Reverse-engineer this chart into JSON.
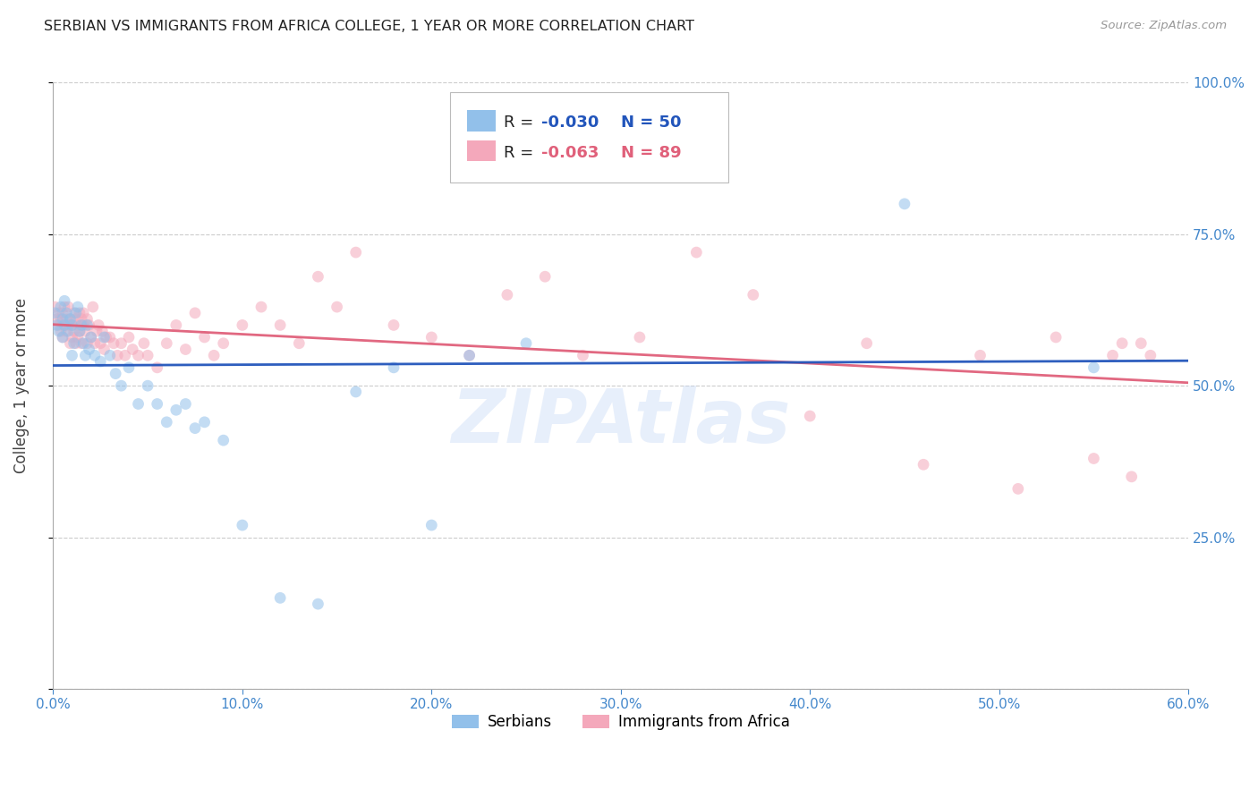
{
  "title": "SERBIAN VS IMMIGRANTS FROM AFRICA COLLEGE, 1 YEAR OR MORE CORRELATION CHART",
  "source": "Source: ZipAtlas.com",
  "ylabel": "College, 1 year or more",
  "x_ticks": [
    0.0,
    0.1,
    0.2,
    0.3,
    0.4,
    0.5,
    0.6
  ],
  "x_tick_labels": [
    "0.0%",
    "10.0%",
    "20.0%",
    "30.0%",
    "40.0%",
    "50.0%",
    "60.0%"
  ],
  "y_ticks": [
    0.0,
    0.25,
    0.5,
    0.75,
    1.0
  ],
  "right_y_tick_labels": [
    "",
    "25.0%",
    "50.0%",
    "75.0%",
    "100.0%"
  ],
  "xlim": [
    0.0,
    0.6
  ],
  "ylim": [
    0.0,
    1.0
  ],
  "legend_serbian_R": "-0.030",
  "legend_serbian_N": "50",
  "legend_africa_R": "-0.063",
  "legend_africa_N": "89",
  "serbian_color": "#92C0EA",
  "africa_color": "#F4A8BB",
  "trendline_serbian_color": "#2255BB",
  "trendline_africa_color": "#E0607A",
  "grid_color": "#CCCCCC",
  "axis_label_color": "#4488CC",
  "title_color": "#222222",
  "background_color": "#FFFFFF",
  "serbian_x": [
    0.001,
    0.002,
    0.003,
    0.004,
    0.005,
    0.005,
    0.006,
    0.006,
    0.007,
    0.008,
    0.009,
    0.01,
    0.01,
    0.011,
    0.012,
    0.013,
    0.014,
    0.015,
    0.016,
    0.017,
    0.018,
    0.019,
    0.02,
    0.022,
    0.025,
    0.027,
    0.03,
    0.033,
    0.036,
    0.04,
    0.045,
    0.05,
    0.055,
    0.06,
    0.065,
    0.07,
    0.075,
    0.08,
    0.09,
    0.1,
    0.12,
    0.14,
    0.16,
    0.18,
    0.2,
    0.22,
    0.25,
    0.33,
    0.45,
    0.55
  ],
  "serbian_y": [
    0.62,
    0.6,
    0.59,
    0.63,
    0.61,
    0.58,
    0.64,
    0.6,
    0.62,
    0.59,
    0.61,
    0.6,
    0.55,
    0.57,
    0.62,
    0.63,
    0.59,
    0.6,
    0.57,
    0.55,
    0.6,
    0.56,
    0.58,
    0.55,
    0.54,
    0.58,
    0.55,
    0.52,
    0.5,
    0.53,
    0.47,
    0.5,
    0.47,
    0.44,
    0.46,
    0.47,
    0.43,
    0.44,
    0.41,
    0.27,
    0.15,
    0.14,
    0.49,
    0.53,
    0.27,
    0.55,
    0.57,
    0.85,
    0.8,
    0.53
  ],
  "africa_x": [
    0.001,
    0.002,
    0.003,
    0.003,
    0.004,
    0.004,
    0.005,
    0.005,
    0.006,
    0.006,
    0.007,
    0.007,
    0.008,
    0.008,
    0.009,
    0.009,
    0.01,
    0.01,
    0.011,
    0.011,
    0.012,
    0.012,
    0.013,
    0.013,
    0.014,
    0.014,
    0.015,
    0.015,
    0.016,
    0.016,
    0.017,
    0.018,
    0.018,
    0.019,
    0.02,
    0.021,
    0.022,
    0.023,
    0.024,
    0.025,
    0.026,
    0.027,
    0.028,
    0.03,
    0.032,
    0.034,
    0.036,
    0.038,
    0.04,
    0.042,
    0.045,
    0.048,
    0.05,
    0.055,
    0.06,
    0.065,
    0.07,
    0.075,
    0.08,
    0.085,
    0.09,
    0.1,
    0.11,
    0.12,
    0.13,
    0.14,
    0.15,
    0.16,
    0.18,
    0.2,
    0.22,
    0.24,
    0.26,
    0.28,
    0.31,
    0.34,
    0.37,
    0.4,
    0.43,
    0.46,
    0.49,
    0.51,
    0.53,
    0.55,
    0.56,
    0.565,
    0.57,
    0.575,
    0.58
  ],
  "africa_y": [
    0.63,
    0.61,
    0.6,
    0.62,
    0.59,
    0.61,
    0.62,
    0.58,
    0.63,
    0.6,
    0.61,
    0.59,
    0.6,
    0.63,
    0.57,
    0.61,
    0.6,
    0.58,
    0.62,
    0.59,
    0.57,
    0.61,
    0.6,
    0.58,
    0.62,
    0.59,
    0.57,
    0.61,
    0.6,
    0.62,
    0.59,
    0.57,
    0.61,
    0.6,
    0.58,
    0.63,
    0.57,
    0.59,
    0.6,
    0.57,
    0.59,
    0.56,
    0.58,
    0.58,
    0.57,
    0.55,
    0.57,
    0.55,
    0.58,
    0.56,
    0.55,
    0.57,
    0.55,
    0.53,
    0.57,
    0.6,
    0.56,
    0.62,
    0.58,
    0.55,
    0.57,
    0.6,
    0.63,
    0.6,
    0.57,
    0.68,
    0.63,
    0.72,
    0.6,
    0.58,
    0.55,
    0.65,
    0.68,
    0.55,
    0.58,
    0.72,
    0.65,
    0.45,
    0.57,
    0.37,
    0.55,
    0.33,
    0.58,
    0.38,
    0.55,
    0.57,
    0.35,
    0.57,
    0.55
  ],
  "marker_size": 85,
  "marker_alpha": 0.55,
  "line_width": 2.0,
  "watermark": "ZIPAtlas",
  "watermark_color": "#C5D8F5",
  "watermark_alpha": 0.4
}
